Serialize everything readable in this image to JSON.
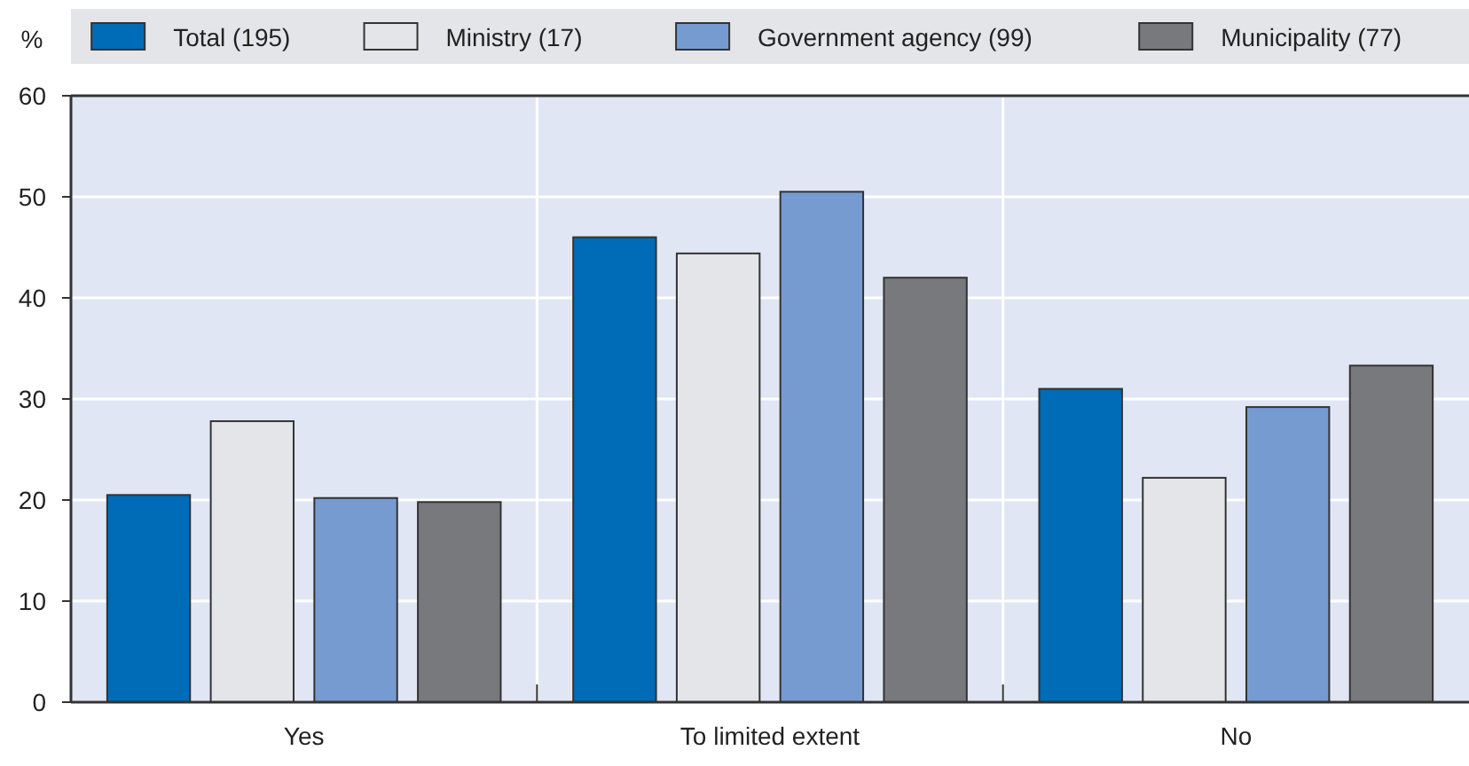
{
  "chart_data": {
    "type": "bar",
    "ylabel": "%",
    "categories": [
      "Yes",
      "To limited extent",
      "No"
    ],
    "series": [
      {
        "name": "Total (195)",
        "color": "#006bb6",
        "values": [
          20.5,
          46,
          31
        ]
      },
      {
        "name": "Ministry (17)",
        "color": "#e4e5e8",
        "values": [
          27.8,
          44.4,
          22.2
        ]
      },
      {
        "name": "Government agency (99)",
        "color": "#769bd0",
        "values": [
          20.2,
          50.5,
          29.2
        ]
      },
      {
        "name": "Municipality (77)",
        "color": "#78797c",
        "values": [
          19.8,
          42,
          33.3
        ]
      }
    ],
    "ylim": [
      0,
      60
    ],
    "yticks": [
      0,
      10,
      20,
      30,
      40,
      50,
      60
    ],
    "grid": true,
    "legend": "top"
  }
}
